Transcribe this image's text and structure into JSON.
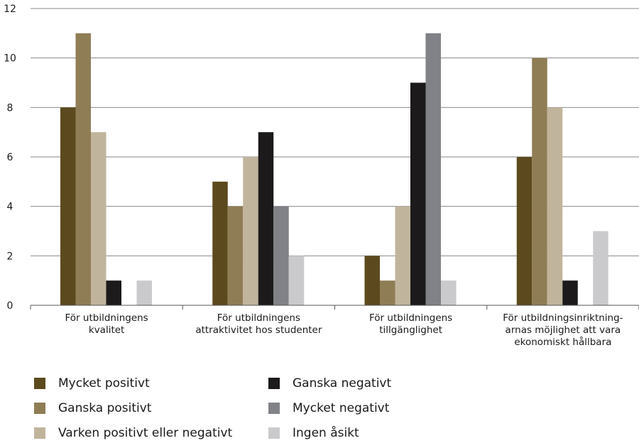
{
  "chart_data": {
    "type": "bar",
    "categories": [
      [
        "För utbildningens",
        "kvalitet"
      ],
      [
        "För utbildningens",
        "attraktivitet hos studenter"
      ],
      [
        "För utbildningens",
        "tillgänglighet"
      ],
      [
        "För utbildningsinriktning-",
        "arnas möjlighet att vara",
        "ekonomiskt hållbara"
      ]
    ],
    "series": [
      {
        "name": "Mycket positivt",
        "color": "#5c4a1e",
        "values": [
          8,
          5,
          2,
          6
        ]
      },
      {
        "name": "Ganska positivt",
        "color": "#8f7d55",
        "values": [
          11,
          4,
          1,
          10
        ]
      },
      {
        "name": "Varken positivt eller negativt",
        "color": "#c1b49c",
        "values": [
          7,
          6,
          4,
          8
        ]
      },
      {
        "name": "Ganska negativt",
        "color": "#1c1a1b",
        "values": [
          1,
          7,
          9,
          1
        ]
      },
      {
        "name": "Mycket negativt",
        "color": "#818287",
        "values": [
          0,
          4,
          11,
          0
        ]
      },
      {
        "name": "Ingen åsikt",
        "color": "#cacacc",
        "values": [
          1,
          2,
          1,
          3
        ]
      }
    ],
    "yticks": [
      "0",
      "2",
      "4",
      "6",
      "8",
      "10",
      "12"
    ],
    "ylim": [
      0,
      12
    ],
    "grid": true,
    "legend_position": "bottom"
  }
}
